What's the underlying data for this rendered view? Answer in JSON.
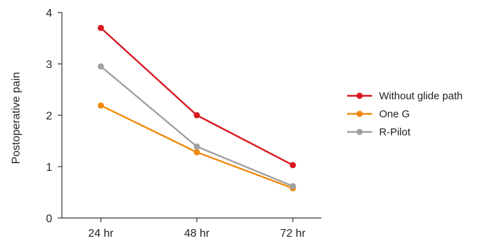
{
  "chart_data": {
    "type": "line",
    "title": "",
    "xlabel": "",
    "ylabel": "Postoperative pain",
    "categories": [
      "24 hr",
      "48 hr",
      "72 hr"
    ],
    "ylim": [
      0,
      4
    ],
    "yticks": [
      0,
      1,
      2,
      3,
      4
    ],
    "grid": false,
    "legend_position": "right",
    "series": [
      {
        "name": "Without glide path",
        "color": "#d7191f",
        "values": [
          3.7,
          2.0,
          1.03
        ]
      },
      {
        "name": "One G",
        "color": "#f08a0e",
        "values": [
          2.19,
          1.28,
          0.58
        ]
      },
      {
        "name": "R-Pilot",
        "color": "#a0a0a0",
        "values": [
          2.95,
          1.39,
          0.62
        ]
      }
    ]
  }
}
